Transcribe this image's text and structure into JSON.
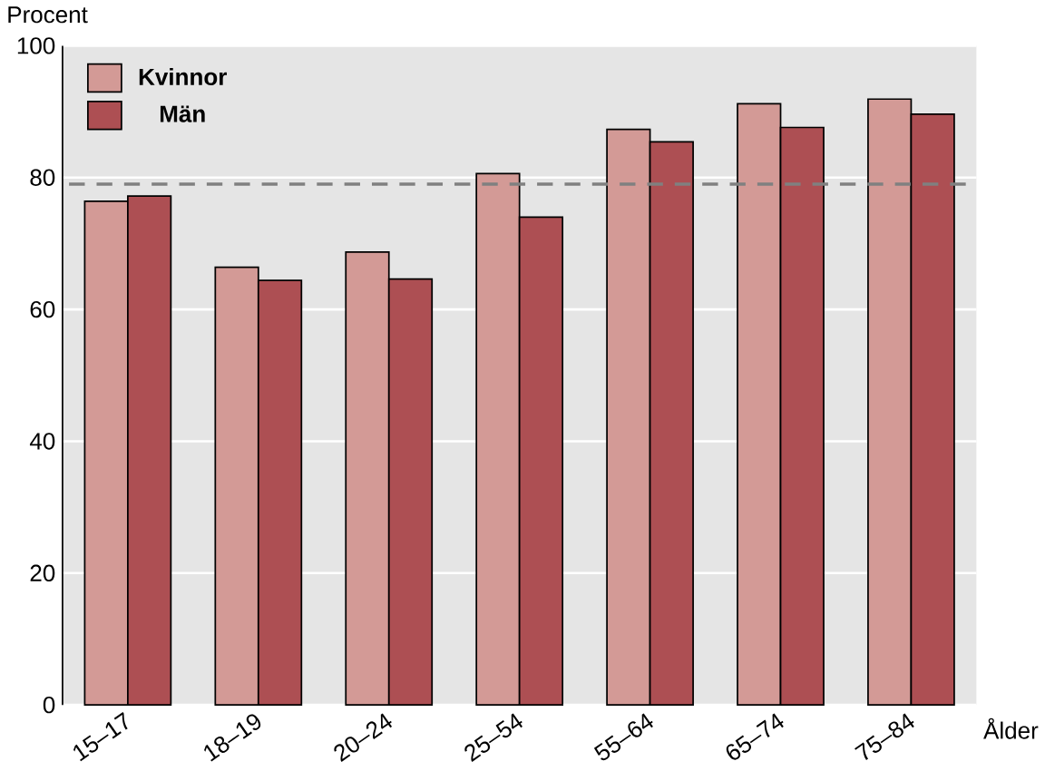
{
  "chart_data": {
    "type": "bar",
    "ylabel": "Procent",
    "xlabel": "Ålder",
    "categories": [
      "15–17",
      "18–19",
      "20–24",
      "25–54",
      "55–64",
      "65–74",
      "75–84"
    ],
    "series": [
      {
        "name": "Kvinnor",
        "color": "#d39a96",
        "values": [
          76.4,
          66.4,
          68.7,
          80.6,
          87.3,
          91.2,
          91.9
        ]
      },
      {
        "name": "Män",
        "color": "#ad4f53",
        "values": [
          77.2,
          64.4,
          64.6,
          74,
          85.4,
          87.6,
          89.6
        ]
      }
    ],
    "ylim": [
      0,
      100
    ],
    "yticks": [
      0,
      20,
      40,
      60,
      80,
      100
    ],
    "grid": "y",
    "legend": "top left",
    "ref_lines": [
      {
        "axis": "y",
        "value": 79,
        "color": "#808080",
        "line_style": "dashed"
      }
    ]
  }
}
